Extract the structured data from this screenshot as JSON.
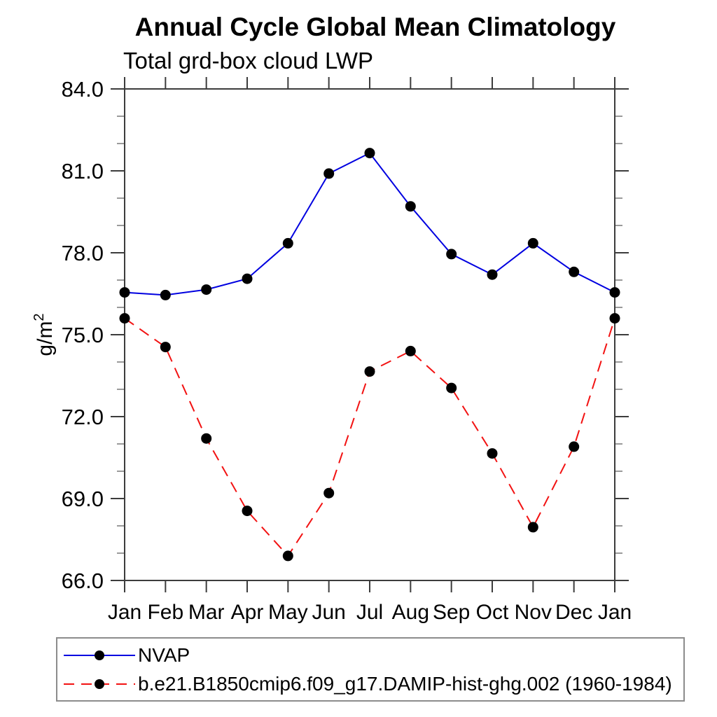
{
  "chart_data": {
    "type": "line",
    "title": "Annual Cycle Global Mean Climatology",
    "subtitle": "Total grd-box cloud LWP",
    "ylabel": {
      "base": "g/m",
      "sup": "2"
    },
    "categories": [
      "Jan",
      "Feb",
      "Mar",
      "Apr",
      "May",
      "Jun",
      "Jul",
      "Aug",
      "Sep",
      "Oct",
      "Nov",
      "Dec",
      "Jan"
    ],
    "ylim": [
      66.0,
      84.0
    ],
    "ytick_values": [
      66,
      69,
      72,
      75,
      78,
      81,
      84
    ],
    "ytick_labels": [
      "66.0",
      "69.0",
      "72.0",
      "75.0",
      "78.0",
      "81.0",
      "84.0"
    ],
    "ytick_minor_interval": 1,
    "grid": false,
    "frame": "box",
    "legend_position": "bottom-left",
    "series": [
      {
        "name": "NVAP",
        "color": "#0000e0",
        "line_style": "solid",
        "marker": "filled-circle",
        "marker_color": "#000000",
        "values": [
          76.55,
          76.45,
          76.65,
          77.05,
          78.35,
          80.9,
          81.65,
          79.7,
          77.95,
          77.2,
          78.35,
          77.3,
          76.55
        ]
      },
      {
        "name": "b.e21.B1850cmip6.f09_g17.DAMIP-hist-ghg.002 (1960-1984)",
        "color": "#f21212",
        "line_style": "dashed",
        "marker": "filled-circle",
        "marker_color": "#000000",
        "values": [
          75.6,
          74.55,
          71.2,
          68.55,
          66.9,
          69.2,
          73.65,
          74.4,
          73.05,
          70.65,
          67.95,
          70.9,
          75.6
        ]
      }
    ]
  },
  "colors": {
    "axis": "#3c3c3c",
    "minor_tick": "#9a9a9a",
    "legend_border": "#8c8c8c",
    "background": "#ffffff"
  }
}
